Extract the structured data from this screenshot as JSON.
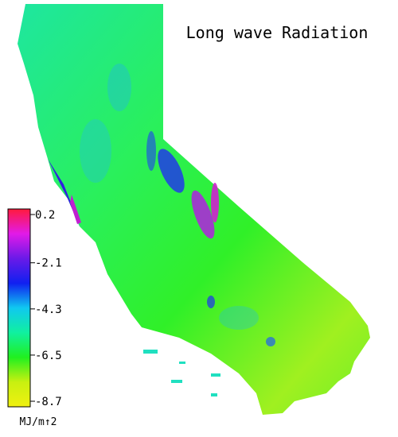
{
  "title": "Long wave Radiation",
  "colorbar": {
    "range": [
      -8.7,
      0.2
    ],
    "ticks": [
      0.2,
      -2.1,
      -4.3,
      -6.5,
      -8.7
    ],
    "unit": "MJ/m↑2",
    "colors": [
      "#ff1a3c",
      "#e21ae8",
      "#6a1ae8",
      "#1020f0",
      "#10c8f0",
      "#10f0a0",
      "#20f020",
      "#c8f010",
      "#f0f010"
    ]
  }
}
